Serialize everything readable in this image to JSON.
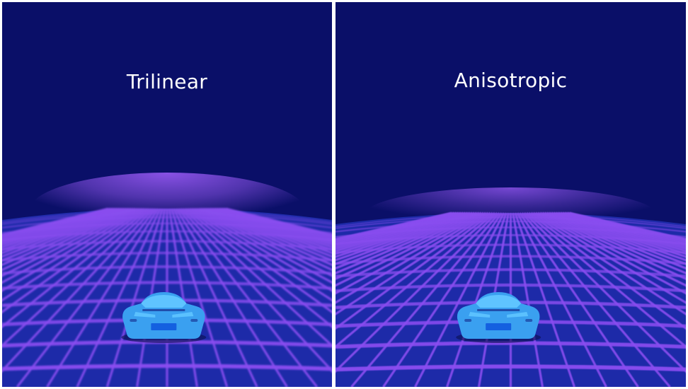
{
  "panels": [
    {
      "label": "Trilinear",
      "filter": "trilinear"
    },
    {
      "label": "Anisotropic",
      "filter": "anisotropic"
    }
  ],
  "colors": {
    "sky": "#0a0f68",
    "ground": "#1d2aa8",
    "grid": "#8a4cf0",
    "haze": "#8a52e6",
    "car_body": "#3aa0f0",
    "car_highlight": "#5fc4ff",
    "car_dark": "#1a3a9a"
  }
}
